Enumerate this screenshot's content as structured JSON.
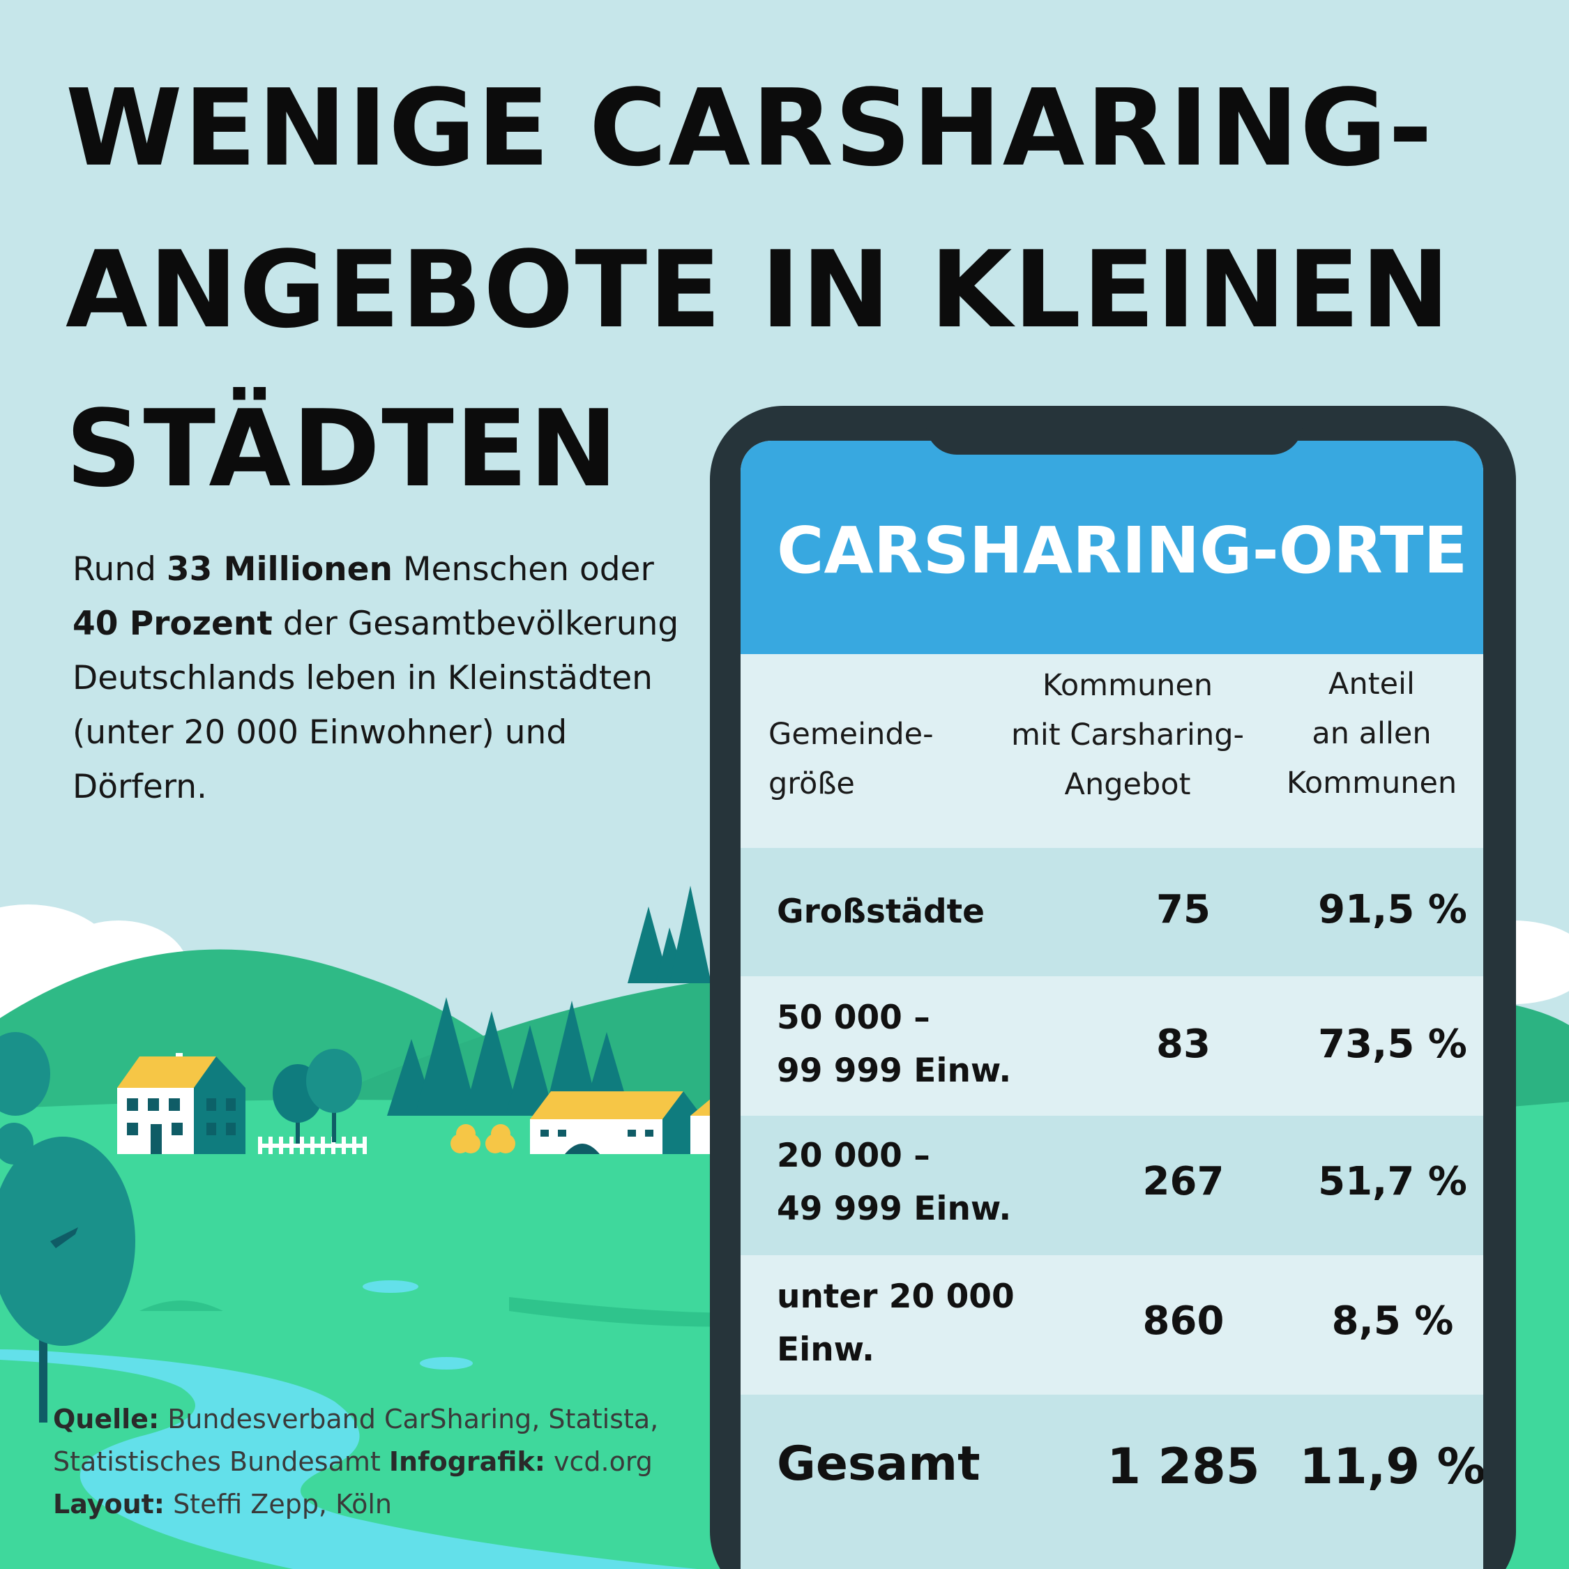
{
  "headline": {
    "line1": "WENIGE CARSHARING-",
    "line2": "ANGEBOTE IN KLEINEN",
    "line3": "STÄDTEN"
  },
  "intro": {
    "p1": "Rund ",
    "b1": "33 Millionen",
    "p2": " Menschen oder",
    "b2": "40 Prozent",
    "p3": " der Gesamtbevölkerung",
    "p4": "Deutschlands leben in Kleinstädten",
    "p5": "(unter 20 000 Einwohner) und",
    "p6": "Dörfern."
  },
  "source": {
    "source_label": "Quelle:",
    "source_text1": " Bundesverband CarSharing, Statista,",
    "source_text2": "Statistisches Bundesamt ",
    "infografik_label": "Infografik:",
    "infografik_text": " vcd.org",
    "layout_label": "Layout:",
    "layout_text": " Steffi Zepp, Köln"
  },
  "chart_data": {
    "type": "table",
    "title": "CARSHARING-ORTE",
    "columns": {
      "c1_l1": "Gemeinde-",
      "c1_l2": "größe",
      "c2_l1": "Kommunen",
      "c2_l2": "mit Carsharing-",
      "c2_l3": "Angebot",
      "c3_l1": "Anteil",
      "c3_l2": "an allen",
      "c3_l3": "Kommunen"
    },
    "rows": [
      {
        "size_l1": "Großstädte",
        "size_l2": "",
        "count": "75",
        "share": "91,5 %"
      },
      {
        "size_l1": "50 000 –",
        "size_l2": "99 999 Einw.",
        "count": "83",
        "share": "73,5 %"
      },
      {
        "size_l1": "20 000 –",
        "size_l2": "49 999 Einw.",
        "count": "267",
        "share": "51,7 %"
      },
      {
        "size_l1": "unter 20 000",
        "size_l2": "Einw.",
        "count": "860",
        "share": "8,5 %"
      }
    ],
    "total": {
      "label": "Gesamt",
      "count": "1 285",
      "share": "11,9 %"
    }
  },
  "colors": {
    "background": "#c6e6ea",
    "header_blue": "#38a8e0",
    "phone_frame": "#26343a",
    "grass": "#3fd89c",
    "hill": "#2fc48c",
    "river": "#63e0ea"
  }
}
